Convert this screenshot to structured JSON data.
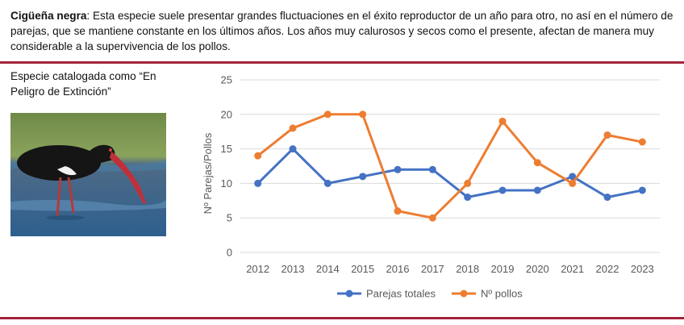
{
  "header": {
    "species_name": "Cigüeña negra",
    "description": ": Esta especie suele presentar grandes fluctuaciones en el éxito reproductor de un año para otro, no así en el número de parejas, que se mantiene constante en los últimos años. Los años muy calurosos y secos como el presente, afectan de manera muy considerable a la supervivencia de los pollos."
  },
  "side": {
    "caption": "Especie catalogada como “En Peligro de Extinción”"
  },
  "colors": {
    "rule": "#a3243b",
    "parejas": "#4472c4",
    "pollos": "#ed7d31",
    "grid": "#d9d9d9",
    "axis_text": "#595959"
  },
  "chart_data": {
    "type": "line",
    "x": [
      "2012",
      "2013",
      "2014",
      "2015",
      "2016",
      "2017",
      "2018",
      "2019",
      "2020",
      "2021",
      "2022",
      "2023"
    ],
    "ylabel": "Nº Parejas/Pollos",
    "xlabel": "",
    "ylim": [
      0,
      25
    ],
    "yticks": [
      0,
      5,
      10,
      15,
      20,
      25
    ],
    "grid": true,
    "legend_position": "bottom",
    "series": [
      {
        "name": "Parejas totales",
        "color": "#4472c4",
        "values": [
          10,
          15,
          10,
          11,
          12,
          12,
          8,
          9,
          9,
          11,
          8,
          9
        ]
      },
      {
        "name": "Nº pollos",
        "color": "#ed7d31",
        "values": [
          14,
          18,
          20,
          20,
          6,
          5,
          10,
          19,
          13,
          10,
          17,
          16
        ]
      }
    ]
  }
}
